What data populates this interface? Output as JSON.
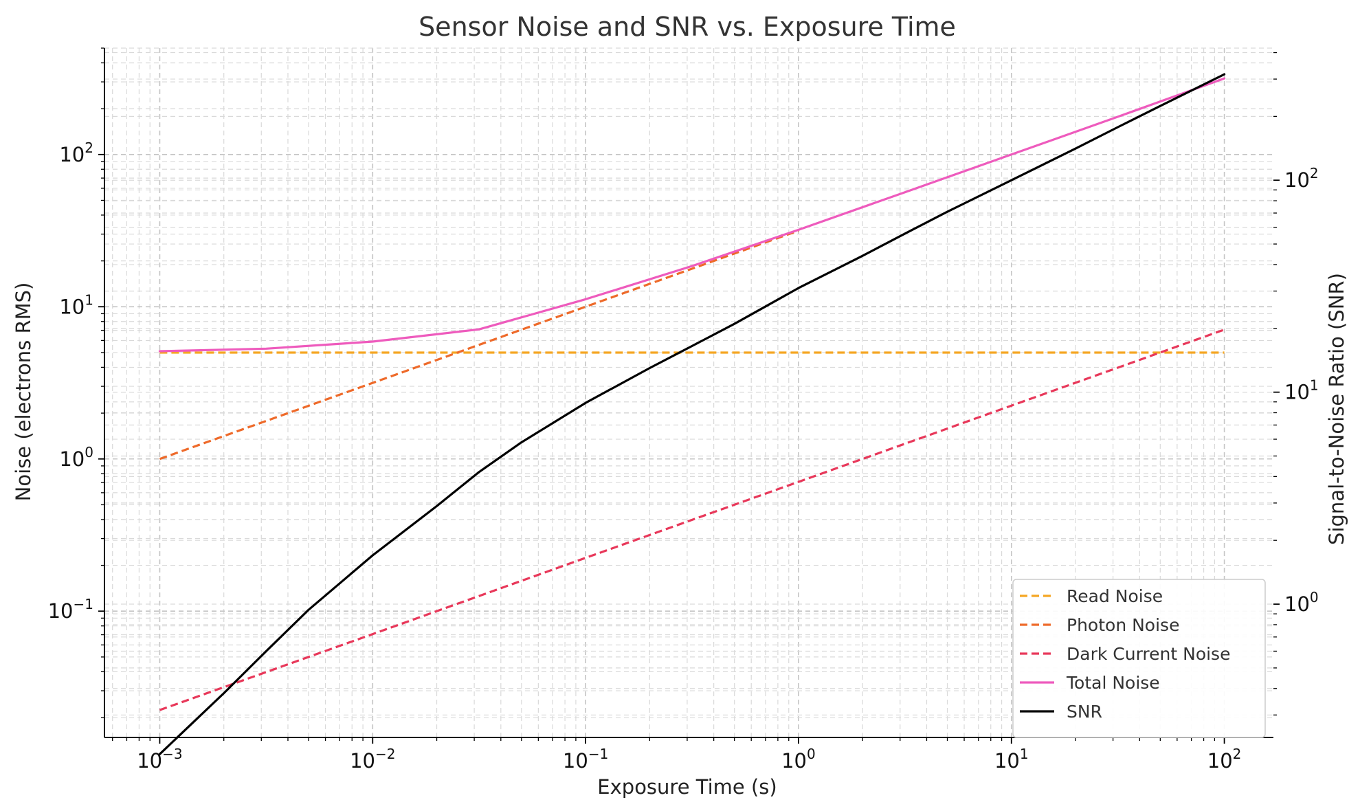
{
  "chart_data": {
    "type": "line",
    "title": "Sensor Noise and SNR vs. Exposure Time",
    "xlabel": "Exposure Time (s)",
    "ylabel": "Noise (electrons RMS)",
    "y2label": "Signal-to-Noise Ratio (SNR)",
    "x_scale": "log",
    "y_scale": "log",
    "y2_scale": "log",
    "xlim": [
      0.00055,
      170
    ],
    "ylim": [
      0.0148,
      500
    ],
    "y2lim": [
      0.235,
      420
    ],
    "grid": true,
    "legend_position": "bottom-right",
    "x_ticks": [
      {
        "value": 0.001,
        "base": "10",
        "exp": "−3"
      },
      {
        "value": 0.01,
        "base": "10",
        "exp": "−2"
      },
      {
        "value": 0.1,
        "base": "10",
        "exp": "−1"
      },
      {
        "value": 1,
        "base": "10",
        "exp": "0"
      },
      {
        "value": 10,
        "base": "10",
        "exp": "1"
      },
      {
        "value": 100,
        "base": "10",
        "exp": "2"
      }
    ],
    "y_ticks": [
      {
        "value": 0.1,
        "base": "10",
        "exp": "−1"
      },
      {
        "value": 1,
        "base": "10",
        "exp": "0"
      },
      {
        "value": 10,
        "base": "10",
        "exp": "1"
      },
      {
        "value": 100,
        "base": "10",
        "exp": "2"
      }
    ],
    "y2_ticks": [
      {
        "value": 1,
        "base": "10",
        "exp": "0"
      },
      {
        "value": 10,
        "base": "10",
        "exp": "1"
      },
      {
        "value": 100,
        "base": "10",
        "exp": "2"
      }
    ],
    "series": [
      {
        "name": "Read Noise",
        "axis": "left",
        "color": "#f5a623",
        "dashed": true,
        "x": [
          0.001,
          0.01,
          0.1,
          1,
          10,
          100
        ],
        "y": [
          5,
          5,
          5,
          5,
          5,
          5
        ]
      },
      {
        "name": "Photon Noise",
        "axis": "left",
        "color": "#ee6a2a",
        "dashed": true,
        "x": [
          0.001,
          0.01,
          0.1,
          1
        ],
        "y": [
          1,
          3.16,
          10,
          31.6
        ]
      },
      {
        "name": "Dark Current Noise",
        "axis": "left",
        "color": "#e8385a",
        "dashed": true,
        "x": [
          0.001,
          0.01,
          0.1,
          1,
          10,
          100
        ],
        "y": [
          0.0224,
          0.0707,
          0.224,
          0.707,
          2.24,
          7.07
        ]
      },
      {
        "name": "Total Noise",
        "axis": "left",
        "color": "#ee5bbd",
        "dashed": false,
        "x": [
          0.001,
          0.00316,
          0.01,
          0.0316,
          0.1,
          0.316,
          1,
          3.16,
          10,
          31.6,
          100
        ],
        "y": [
          5.1,
          5.3,
          5.9,
          7.1,
          11.2,
          18.5,
          32,
          56.5,
          100,
          177,
          316
        ]
      },
      {
        "name": "SNR",
        "axis": "right",
        "color": "#000000",
        "dashed": false,
        "x": [
          0.001,
          0.002,
          0.00316,
          0.005,
          0.01,
          0.02,
          0.0316,
          0.05,
          0.1,
          0.2,
          0.316,
          0.5,
          1,
          2,
          3.16,
          5,
          10,
          20,
          31.6,
          50,
          100
        ],
        "y": [
          0.196,
          0.38,
          0.6,
          0.94,
          1.7,
          2.9,
          4.2,
          5.8,
          8.9,
          13,
          16.5,
          21,
          31,
          44,
          56,
          71,
          100,
          141,
          178,
          224,
          316
        ]
      }
    ]
  }
}
